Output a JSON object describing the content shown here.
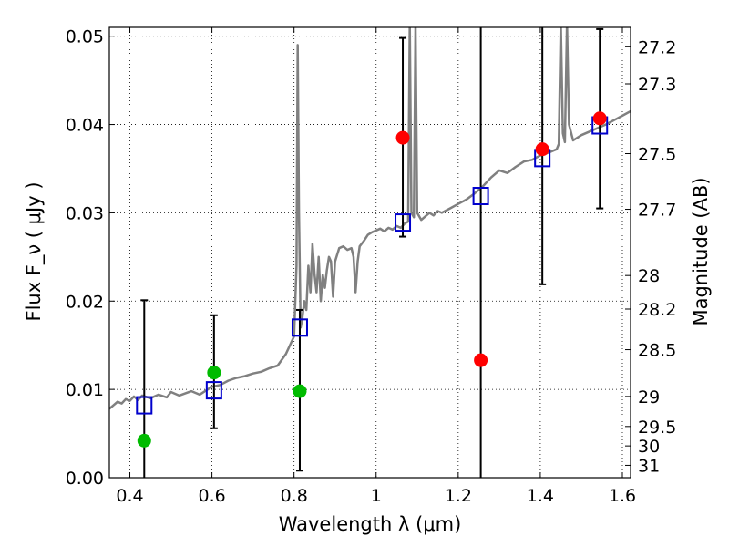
{
  "chart_data": {
    "type": "scatter",
    "xlabel": "Wavelength  λ (μm)",
    "ylabel": "Flux  F_ν  ( μJy )",
    "ylabel_right": "Magnitude (AB)",
    "xlim": [
      0.35,
      1.62
    ],
    "ylim": [
      0.0,
      0.051
    ],
    "grid": true,
    "x_ticks": [
      0.4,
      0.6,
      0.8,
      1.0,
      1.2,
      1.4,
      1.6
    ],
    "x_tick_labels": [
      "0.4",
      "0.6",
      "0.8",
      "1",
      "1.2",
      "1.4",
      "1.6"
    ],
    "y_ticks": [
      0.0,
      0.01,
      0.02,
      0.03,
      0.04,
      0.05
    ],
    "y_tick_labels": [
      "0.00",
      "0.01",
      "0.02",
      "0.03",
      "0.04",
      "0.05"
    ],
    "right_ticks": [
      {
        "flux": 0.0488,
        "label": "27.2"
      },
      {
        "flux": 0.0446,
        "label": "27.3"
      },
      {
        "flux": 0.0367,
        "label": "27.5"
      },
      {
        "flux": 0.0304,
        "label": "27.7"
      },
      {
        "flux": 0.0229,
        "label": "28"
      },
      {
        "flux": 0.0191,
        "label": "28.2"
      },
      {
        "flux": 0.0145,
        "label": "28.5"
      },
      {
        "flux": 0.0092,
        "label": "29"
      },
      {
        "flux": 0.0058,
        "label": "29.5"
      },
      {
        "flux": 0.0036,
        "label": "30"
      },
      {
        "flux": 0.0014,
        "label": "31"
      }
    ],
    "template_spectrum": {
      "color": "#808080",
      "points": [
        [
          0.35,
          0.0078
        ],
        [
          0.36,
          0.0082
        ],
        [
          0.37,
          0.0086
        ],
        [
          0.38,
          0.0084
        ],
        [
          0.39,
          0.0089
        ],
        [
          0.4,
          0.0087
        ],
        [
          0.41,
          0.0092
        ],
        [
          0.42,
          0.0088
        ],
        [
          0.43,
          0.0093
        ],
        [
          0.45,
          0.009
        ],
        [
          0.47,
          0.0094
        ],
        [
          0.49,
          0.0091
        ],
        [
          0.5,
          0.0097
        ],
        [
          0.52,
          0.0093
        ],
        [
          0.55,
          0.0098
        ],
        [
          0.57,
          0.0094
        ],
        [
          0.59,
          0.01
        ],
        [
          0.6,
          0.0103
        ],
        [
          0.62,
          0.0105
        ],
        [
          0.64,
          0.011
        ],
        [
          0.66,
          0.0113
        ],
        [
          0.68,
          0.0115
        ],
        [
          0.7,
          0.0118
        ],
        [
          0.72,
          0.012
        ],
        [
          0.74,
          0.0124
        ],
        [
          0.76,
          0.0127
        ],
        [
          0.78,
          0.014
        ],
        [
          0.795,
          0.0155
        ],
        [
          0.8,
          0.016
        ],
        [
          0.806,
          0.024
        ],
        [
          0.809,
          0.049
        ],
        [
          0.812,
          0.03
        ],
        [
          0.816,
          0.017
        ],
        [
          0.82,
          0.018
        ],
        [
          0.825,
          0.02
        ],
        [
          0.83,
          0.019
        ],
        [
          0.835,
          0.024
        ],
        [
          0.84,
          0.021
        ],
        [
          0.845,
          0.0265
        ],
        [
          0.85,
          0.023
        ],
        [
          0.855,
          0.021
        ],
        [
          0.86,
          0.025
        ],
        [
          0.865,
          0.02
        ],
        [
          0.87,
          0.023
        ],
        [
          0.875,
          0.0215
        ],
        [
          0.88,
          0.0235
        ],
        [
          0.885,
          0.025
        ],
        [
          0.89,
          0.0245
        ],
        [
          0.895,
          0.0205
        ],
        [
          0.9,
          0.0245
        ],
        [
          0.91,
          0.026
        ],
        [
          0.92,
          0.0262
        ],
        [
          0.93,
          0.0258
        ],
        [
          0.94,
          0.026
        ],
        [
          0.945,
          0.025
        ],
        [
          0.95,
          0.021
        ],
        [
          0.955,
          0.0245
        ],
        [
          0.96,
          0.0262
        ],
        [
          0.97,
          0.0268
        ],
        [
          0.98,
          0.0275
        ],
        [
          0.99,
          0.0278
        ],
        [
          1.0,
          0.028
        ],
        [
          1.01,
          0.0282
        ],
        [
          1.02,
          0.0279
        ],
        [
          1.03,
          0.0283
        ],
        [
          1.04,
          0.0281
        ],
        [
          1.05,
          0.0285
        ],
        [
          1.06,
          0.0283
        ],
        [
          1.07,
          0.0288
        ],
        [
          1.078,
          0.029
        ],
        [
          1.082,
          0.0515
        ],
        [
          1.086,
          0.03
        ],
        [
          1.092,
          0.0295
        ],
        [
          1.096,
          0.0515
        ],
        [
          1.1,
          0.03
        ],
        [
          1.11,
          0.0292
        ],
        [
          1.12,
          0.0296
        ],
        [
          1.13,
          0.03
        ],
        [
          1.14,
          0.0297
        ],
        [
          1.15,
          0.0302
        ],
        [
          1.16,
          0.03
        ],
        [
          1.18,
          0.0305
        ],
        [
          1.2,
          0.031
        ],
        [
          1.22,
          0.0315
        ],
        [
          1.24,
          0.0322
        ],
        [
          1.26,
          0.033
        ],
        [
          1.28,
          0.034
        ],
        [
          1.3,
          0.0348
        ],
        [
          1.32,
          0.0345
        ],
        [
          1.34,
          0.0352
        ],
        [
          1.36,
          0.0358
        ],
        [
          1.38,
          0.036
        ],
        [
          1.4,
          0.0365
        ],
        [
          1.42,
          0.0368
        ],
        [
          1.44,
          0.0372
        ],
        [
          1.445,
          0.0378
        ],
        [
          1.45,
          0.0515
        ],
        [
          1.455,
          0.039
        ],
        [
          1.46,
          0.038
        ],
        [
          1.465,
          0.0515
        ],
        [
          1.47,
          0.04
        ],
        [
          1.48,
          0.0382
        ],
        [
          1.5,
          0.0388
        ],
        [
          1.52,
          0.0392
        ],
        [
          1.54,
          0.0396
        ],
        [
          1.56,
          0.04
        ],
        [
          1.58,
          0.0405
        ],
        [
          1.6,
          0.041
        ],
        [
          1.62,
          0.0415
        ]
      ]
    },
    "series": [
      {
        "marker": "square",
        "color": "#0000cc",
        "points": [
          {
            "x": 0.435,
            "y": 0.0082
          },
          {
            "x": 0.605,
            "y": 0.0099
          },
          {
            "x": 0.814,
            "y": 0.017
          },
          {
            "x": 1.065,
            "y": 0.0289
          },
          {
            "x": 1.255,
            "y": 0.0319
          },
          {
            "x": 1.405,
            "y": 0.0362
          },
          {
            "x": 1.545,
            "y": 0.0399
          }
        ]
      },
      {
        "marker": "circle",
        "color": "#00bb00",
        "points": [
          {
            "x": 0.435,
            "y": 0.0042,
            "yerr_low": 0.0,
            "yerr_high": 0.0201
          },
          {
            "x": 0.605,
            "y": 0.0119,
            "yerr_low": 0.0056,
            "yerr_high": 0.0184
          },
          {
            "x": 0.814,
            "y": 0.0098,
            "yerr_low": 0.0008,
            "yerr_high": 0.019
          }
        ]
      },
      {
        "marker": "circle",
        "color": "#ff0000",
        "points": [
          {
            "x": 1.065,
            "y": 0.0385,
            "yerr_low": 0.0273,
            "yerr_high": 0.0498
          },
          {
            "x": 1.255,
            "y": 0.0133,
            "yerr_low": 0.0,
            "yerr_high": 0.0515
          },
          {
            "x": 1.405,
            "y": 0.0372,
            "yerr_low": 0.0219,
            "yerr_high": 0.0515
          },
          {
            "x": 1.545,
            "y": 0.0407,
            "yerr_low": 0.0305,
            "yerr_high": 0.0508
          }
        ]
      }
    ]
  }
}
